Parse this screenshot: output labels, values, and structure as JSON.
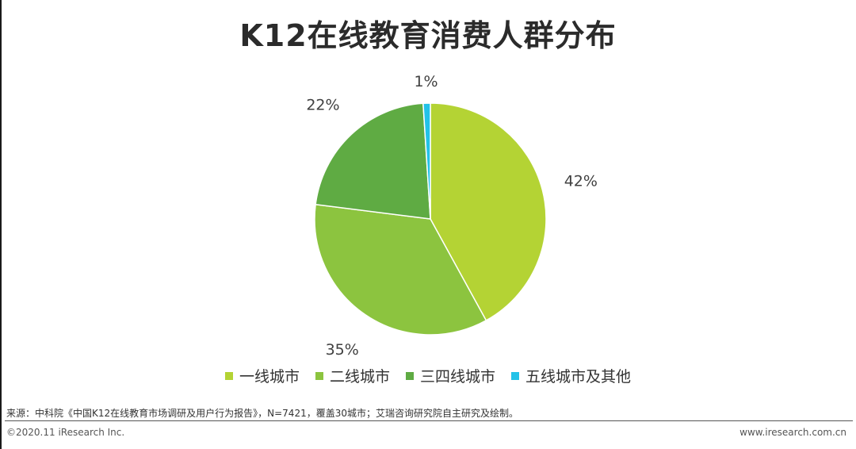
{
  "title": "K12在线教育消费人群分布",
  "chart_data": {
    "type": "pie",
    "slices": [
      {
        "name": "一线城市",
        "value": 42,
        "label": "42%",
        "color": "#b4d334"
      },
      {
        "name": "二线城市",
        "value": 35,
        "label": "35%",
        "color": "#8cc43f"
      },
      {
        "name": "三四线城市",
        "value": 22,
        "label": "22%",
        "color": "#5fab43"
      },
      {
        "name": "五线城市及其他",
        "value": 1,
        "label": "1%",
        "color": "#23c2e8"
      }
    ],
    "legend_position": "bottom"
  },
  "footer": {
    "source": "来源：中科院《中国K12在线教育市场调研及用户行为报告》，N=7421，覆盖30城市；艾瑞咨询研究院自主研究及绘制。",
    "copyright": "©2020.11 iResearch Inc.",
    "website": "www.iresearch.com.cn"
  }
}
